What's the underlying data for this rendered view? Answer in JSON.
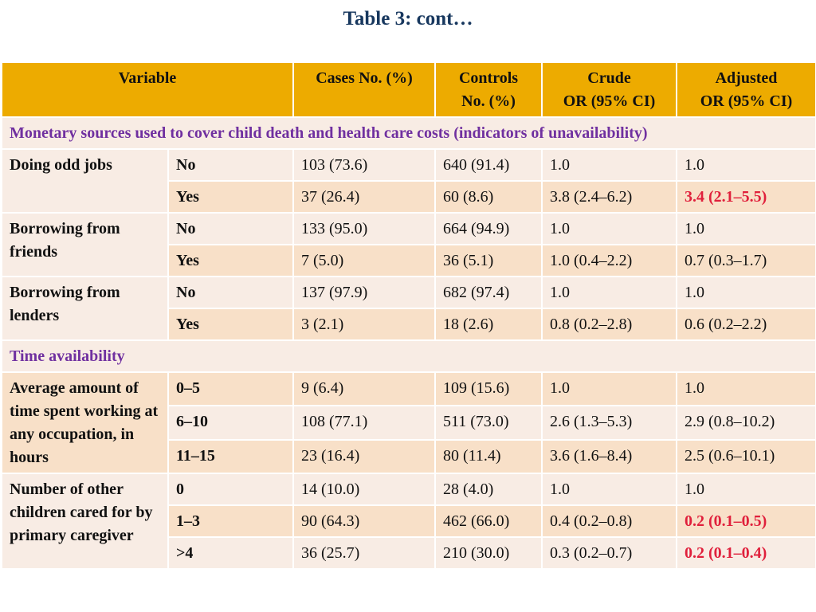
{
  "title": "Table 3: cont…",
  "header": {
    "variable": "Variable",
    "cases": "Cases No. (%)",
    "controls_1": "Controls",
    "controls_2": "No. (%)",
    "crude_1": "Crude",
    "crude_2": "OR (95% CI)",
    "adjusted_1": "Adjusted",
    "adjusted_2": "OR (95% CI)"
  },
  "sections": [
    {
      "title": "Monetary sources used to cover child death and health care costs (indicators of unavailability)",
      "variables": [
        {
          "name": "Doing odd jobs",
          "rows": [
            {
              "level": "No",
              "cases": "103 (73.6)",
              "controls": "640 (91.4)",
              "crude": "1.0",
              "adjusted": "1.0",
              "significant": false
            },
            {
              "level": "Yes",
              "cases": "37 (26.4)",
              "controls": "60 (8.6)",
              "crude": "3.8 (2.4–6.2)",
              "adjusted": "3.4 (2.1–5.5)",
              "significant": true
            }
          ]
        },
        {
          "name": "Borrowing from friends",
          "rows": [
            {
              "level": "No",
              "cases": "133 (95.0)",
              "controls": "664 (94.9)",
              "crude": "1.0",
              "adjusted": "1.0",
              "significant": false
            },
            {
              "level": "Yes",
              "cases": "7 (5.0)",
              "controls": "36 (5.1)",
              "crude": "1.0 (0.4–2.2)",
              "adjusted": "0.7 (0.3–1.7)",
              "significant": false
            }
          ]
        },
        {
          "name": "Borrowing from lenders",
          "rows": [
            {
              "level": "No",
              "cases": "137 (97.9)",
              "controls": "682 (97.4)",
              "crude": "1.0",
              "adjusted": "1.0",
              "significant": false
            },
            {
              "level": "Yes",
              "cases": "3 (2.1)",
              "controls": "18 (2.6)",
              "crude": "0.8 (0.2–2.8)",
              "adjusted": "0.6 (0.2–2.2)",
              "significant": false
            }
          ]
        }
      ]
    },
    {
      "title": "Time availability",
      "variables": [
        {
          "name": "Average amount of time spent working at any occupation, in hours",
          "rows": [
            {
              "level": "0–5",
              "cases": "9 (6.4)",
              "controls": "109 (15.6)",
              "crude": "1.0",
              "adjusted": "1.0",
              "significant": false
            },
            {
              "level": "6–10",
              "cases": "108 (77.1)",
              "controls": "511 (73.0)",
              "crude": "2.6 (1.3–5.3)",
              "adjusted": "2.9 (0.8–10.2)",
              "significant": false
            },
            {
              "level": "11–15",
              "cases": "23 (16.4)",
              "controls": "80 (11.4)",
              "crude": "3.6 (1.6–8.4)",
              "adjusted": "2.5 (0.6–10.1)",
              "significant": false
            }
          ]
        },
        {
          "name": "Number of other children cared for by primary caregiver",
          "rows": [
            {
              "level": "0",
              "cases": "14 (10.0)",
              "controls": "28 (4.0)",
              "crude": "1.0",
              "adjusted": "1.0",
              "significant": false
            },
            {
              "level": "1–3",
              "cases": "90 (64.3)",
              "controls": "462 (66.0)",
              "crude": "0.4 (0.2–0.8)",
              "adjusted": "0.2 (0.1–0.5)",
              "significant": true
            },
            {
              "level": ">4",
              "cases": "36 (25.7)",
              "controls": "210 (30.0)",
              "crude": "0.3 (0.2–0.7)",
              "adjusted": "0.2 (0.1–0.4)",
              "significant": true
            }
          ]
        }
      ]
    }
  ],
  "colors": {
    "header_bg": "#edab00",
    "row_light": "#f8ece4",
    "row_dark": "#f8e0c8",
    "section_text": "#7030a0",
    "significant_text": "#e0203c",
    "title_text": "#17375e"
  }
}
